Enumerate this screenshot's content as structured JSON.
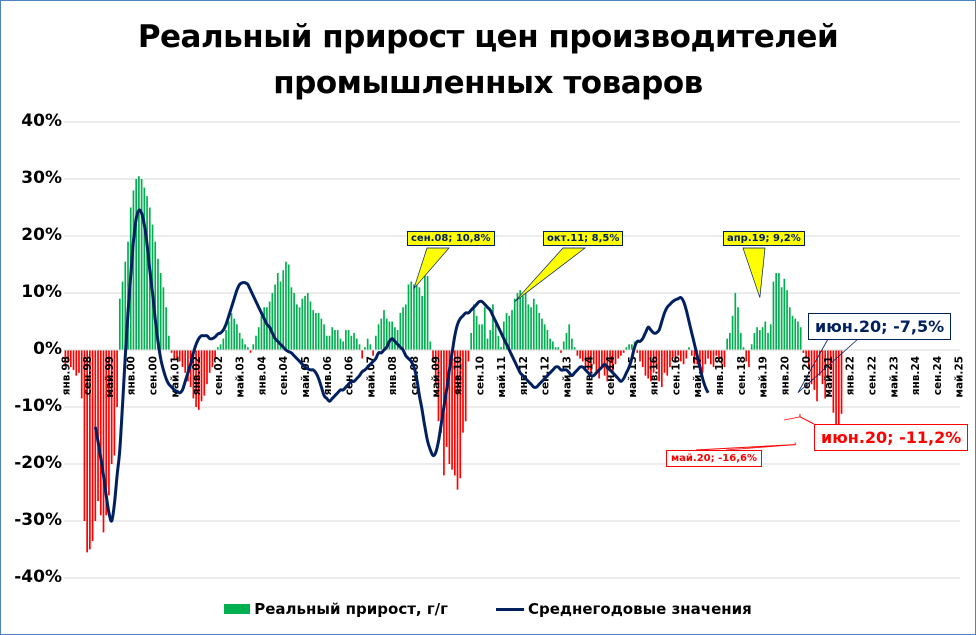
{
  "chart_data": {
    "type": "bar",
    "title": "Реальный прирост цен производителей промышленных товаров",
    "title_lines": [
      "Реальный прирост цен производителей",
      "промышленных товаров"
    ],
    "xlabel": "",
    "ylabel": "",
    "ylim": [
      -0.4,
      0.4
    ],
    "y_ticks": [
      "40%",
      "30%",
      "20%",
      "10%",
      "0%",
      "-10%",
      "-20%",
      "-30%",
      "-40%"
    ],
    "grid": true,
    "legend_position": "bottom",
    "x_tick_labels": [
      "янв.98",
      "сен.98",
      "май.99",
      "янв.00",
      "сен.00",
      "май.01",
      "янв.02",
      "сен.02",
      "май.03",
      "янв.04",
      "сен.04",
      "май.05",
      "янв.06",
      "сен.06",
      "май.07",
      "янв.08",
      "сен.08",
      "май.09",
      "янв.10",
      "сен.10",
      "май.11",
      "янв.12",
      "сен.12",
      "май.13",
      "янв.14",
      "сен.14",
      "май.15",
      "янв.16",
      "сен.16",
      "май.17",
      "янв.18",
      "сен.18",
      "май.19",
      "янв.20",
      "сен.20",
      "май.21",
      "янв.22",
      "сен.22",
      "май.23",
      "янв.24",
      "сен.24",
      "май.25"
    ],
    "x_start": "янв.98",
    "x_end": "май.25",
    "months_total": 329,
    "colors": {
      "positive": "#00b050",
      "negative": "#ff0000",
      "line": "#002060"
    },
    "series": [
      {
        "name": "Реальный прирост, г/г",
        "type": "bar",
        "start": "янв.98",
        "values": [
          -2.5,
          -2.0,
          -3.0,
          -3.5,
          -4.5,
          -4.0,
          -8.5,
          -30.0,
          -35.5,
          -35.0,
          -33.5,
          -30.0,
          -26.5,
          -29.0,
          -32.0,
          -29.0,
          -25.5,
          -20.0,
          -18.5,
          -10.0,
          9.0,
          12.0,
          15.5,
          19.0,
          25.0,
          28.0,
          30.0,
          30.5,
          30.0,
          28.5,
          27.0,
          25.0,
          22.0,
          19.0,
          16.0,
          13.5,
          11.0,
          7.5,
          2.5,
          -0.5,
          -1.5,
          -1.5,
          -2.0,
          -3.0,
          -4.0,
          -5.5,
          -6.5,
          -8.5,
          -10.0,
          -10.5,
          -9.0,
          -8.0,
          -6.0,
          -4.0,
          -3.0,
          -1.5,
          0.5,
          1.0,
          2.0,
          3.5,
          5.0,
          6.5,
          5.5,
          4.5,
          3.0,
          2.0,
          1.0,
          0.5,
          -0.5,
          1.0,
          2.5,
          4.0,
          6.0,
          7.5,
          7.5,
          8.5,
          10.0,
          11.5,
          13.5,
          12.0,
          14.0,
          15.5,
          15.0,
          11.0,
          10.0,
          8.0,
          7.5,
          9.0,
          9.5,
          10.0,
          8.5,
          7.0,
          6.5,
          6.5,
          5.5,
          4.5,
          2.5,
          2.5,
          4.0,
          3.5,
          3.5,
          2.0,
          1.5,
          3.5,
          3.5,
          2.5,
          3.0,
          2.0,
          1.0,
          -1.5,
          0.5,
          2.0,
          1.0,
          -1.0,
          2.5,
          4.5,
          5.5,
          7.0,
          5.5,
          5.0,
          5.0,
          4.0,
          3.5,
          6.5,
          7.5,
          8.0,
          11.5,
          12.0,
          11.5,
          12.0,
          11.0,
          9.5,
          16.5,
          13.0,
          1.5,
          -2.0,
          -6.0,
          -12.5,
          -14.5,
          -22.0,
          -17.0,
          -20.0,
          -21.0,
          -22.0,
          -24.5,
          -22.5,
          -14.5,
          -12.5,
          -2.0,
          3.0,
          8.0,
          6.0,
          4.5,
          4.5,
          7.5,
          2.0,
          3.5,
          8.0,
          4.5,
          2.5,
          0.5,
          5.0,
          6.5,
          6.0,
          7.0,
          9.0,
          10.0,
          10.5,
          9.5,
          10.0,
          8.0,
          7.5,
          9.0,
          8.0,
          6.5,
          5.5,
          4.5,
          3.5,
          2.0,
          1.5,
          0.5,
          0.5,
          -0.5,
          1.5,
          3.0,
          4.5,
          2.0,
          0.5,
          -1.0,
          -1.5,
          -2.0,
          -3.0,
          -3.5,
          -4.0,
          -2.5,
          -4.0,
          -5.0,
          -3.0,
          -4.5,
          -5.5,
          -3.5,
          -4.0,
          -2.5,
          -1.5,
          -1.0,
          -0.5,
          0.5,
          1.0,
          1.0,
          1.5,
          -0.5,
          -2.0,
          -3.0,
          -4.5,
          -5.0,
          -5.5,
          -4.0,
          -3.0,
          -5.5,
          -6.5,
          -4.0,
          -4.5,
          -3.0,
          -1.5,
          -2.0,
          -1.0,
          -2.0,
          -2.5,
          -1.5,
          0.5,
          -1.0,
          -2.5,
          -2.5,
          -3.5,
          -4.0,
          -2.5,
          -1.5,
          -2.5,
          -3.0,
          -1.0,
          -2.0,
          -2.5,
          -3.0,
          2.0,
          3.0,
          6.0,
          10.0,
          7.5,
          3.0,
          0.5,
          -2.0,
          -3.0,
          1.0,
          3.0,
          4.0,
          3.5,
          4.0,
          5.0,
          3.0,
          4.5,
          12.0,
          13.5,
          13.5,
          11.0,
          12.5,
          10.5,
          7.5,
          6.0,
          5.5,
          5.0,
          4.0,
          -0.5,
          -1.5,
          -3.0,
          -6.0,
          -7.0,
          -9.0,
          -4.5,
          -6.0,
          -8.5,
          -5.0,
          -3.5,
          -11.0,
          -13.5,
          -16.6,
          -11.2
        ]
      },
      {
        "name": "Среднегодовые значения",
        "type": "line",
        "start": "дек.98",
        "values": [
          -13.5,
          -16.0,
          -19.0,
          -22.0,
          -25.5,
          -28.5,
          -30.0,
          -27.0,
          -22.0,
          -17.5,
          -9.5,
          -1.0,
          6.5,
          13.0,
          19.0,
          23.0,
          24.5,
          24.0,
          22.0,
          18.5,
          14.0,
          10.0,
          5.5,
          1.5,
          -1.5,
          -3.5,
          -5.0,
          -6.0,
          -6.5,
          -7.0,
          -7.3,
          -7.5,
          -7.0,
          -5.5,
          -4.0,
          -2.5,
          -0.5,
          1.0,
          2.0,
          2.5,
          2.5,
          2.5,
          2.0,
          2.0,
          2.3,
          2.8,
          3.0,
          3.5,
          4.5,
          6.0,
          7.5,
          9.0,
          10.5,
          11.5,
          11.8,
          11.8,
          11.5,
          10.5,
          9.5,
          8.5,
          7.5,
          6.5,
          5.5,
          4.5,
          4.0,
          3.0,
          2.0,
          1.5,
          1.0,
          0.5,
          0.0,
          -0.3,
          -0.5,
          -1.0,
          -1.5,
          -2.0,
          -2.5,
          -3.0,
          -3.3,
          -3.5,
          -3.5,
          -4.0,
          -5.0,
          -6.5,
          -8.0,
          -8.5,
          -9.0,
          -8.5,
          -8.0,
          -7.5,
          -7.0,
          -7.0,
          -6.5,
          -6.0,
          -5.5,
          -5.5,
          -5.0,
          -4.5,
          -3.8,
          -3.5,
          -3.0,
          -2.5,
          -2.0,
          -1.5,
          -0.5,
          -0.5,
          0.0,
          0.5,
          1.5,
          2.0,
          1.5,
          1.0,
          0.5,
          0.0,
          -1.0,
          -1.5,
          -2.0,
          -3.0,
          -5.0,
          -8.0,
          -10.5,
          -13.5,
          -16.0,
          -17.5,
          -18.5,
          -18.0,
          -16.0,
          -13.0,
          -10.0,
          -7.0,
          -3.5,
          -0.5,
          2.5,
          4.5,
          5.5,
          6.0,
          6.5,
          6.5,
          7.0,
          7.5,
          8.0,
          8.5,
          8.5,
          8.0,
          7.5,
          7.0,
          6.0,
          5.0,
          4.0,
          3.0,
          2.0,
          1.0,
          0.0,
          -1.0,
          -2.0,
          -3.0,
          -4.0,
          -4.5,
          -5.0,
          -5.5,
          -6.0,
          -6.5,
          -6.5,
          -6.0,
          -5.5,
          -5.0,
          -4.5,
          -4.0,
          -3.5,
          -3.0,
          -3.0,
          -3.5,
          -3.5,
          -3.5,
          -4.0,
          -4.5,
          -4.0,
          -3.5,
          -3.0,
          -3.0,
          -3.5,
          -4.0,
          -4.5,
          -4.5,
          -4.0,
          -3.5,
          -3.0,
          -2.5,
          -3.0,
          -3.5,
          -4.0,
          -4.5,
          -5.0,
          -5.5,
          -5.0,
          -4.0,
          -3.0,
          -1.5,
          0.5,
          1.5,
          1.5,
          2.0,
          3.0,
          4.0,
          3.5,
          3.0,
          3.0,
          3.5,
          5.0,
          6.5,
          7.5,
          8.0,
          8.5,
          8.8,
          9.0,
          9.2,
          8.5,
          7.0,
          5.0,
          3.0,
          1.0,
          -1.0,
          -3.0,
          -5.0,
          -6.5,
          -7.5
        ]
      }
    ],
    "annotations": [
      {
        "label": "сен.08; 10,8%",
        "x": "сен.08",
        "y": 10.8,
        "style": "yellow-callout"
      },
      {
        "label": "окт.11; 8,5%",
        "x": "окт.11",
        "y": 8.5,
        "style": "yellow-callout"
      },
      {
        "label": "апр.19; 9,2%",
        "x": "апр.19",
        "y": 9.2,
        "style": "yellow-callout"
      },
      {
        "label": "июн.20; -7,5%",
        "x": "июн.20",
        "y": -7.5,
        "style": "navy-callout"
      },
      {
        "label": "июн.20; -11,2%",
        "x": "июн.20",
        "y": -11.2,
        "style": "red-callout"
      },
      {
        "label": "май.20; -16,6%",
        "x": "май.20",
        "y": -16.6,
        "style": "red-callout-small"
      }
    ]
  },
  "legend": {
    "bar_label": "Реальный прирост, г/г",
    "line_label": "Среднегодовые значения"
  }
}
